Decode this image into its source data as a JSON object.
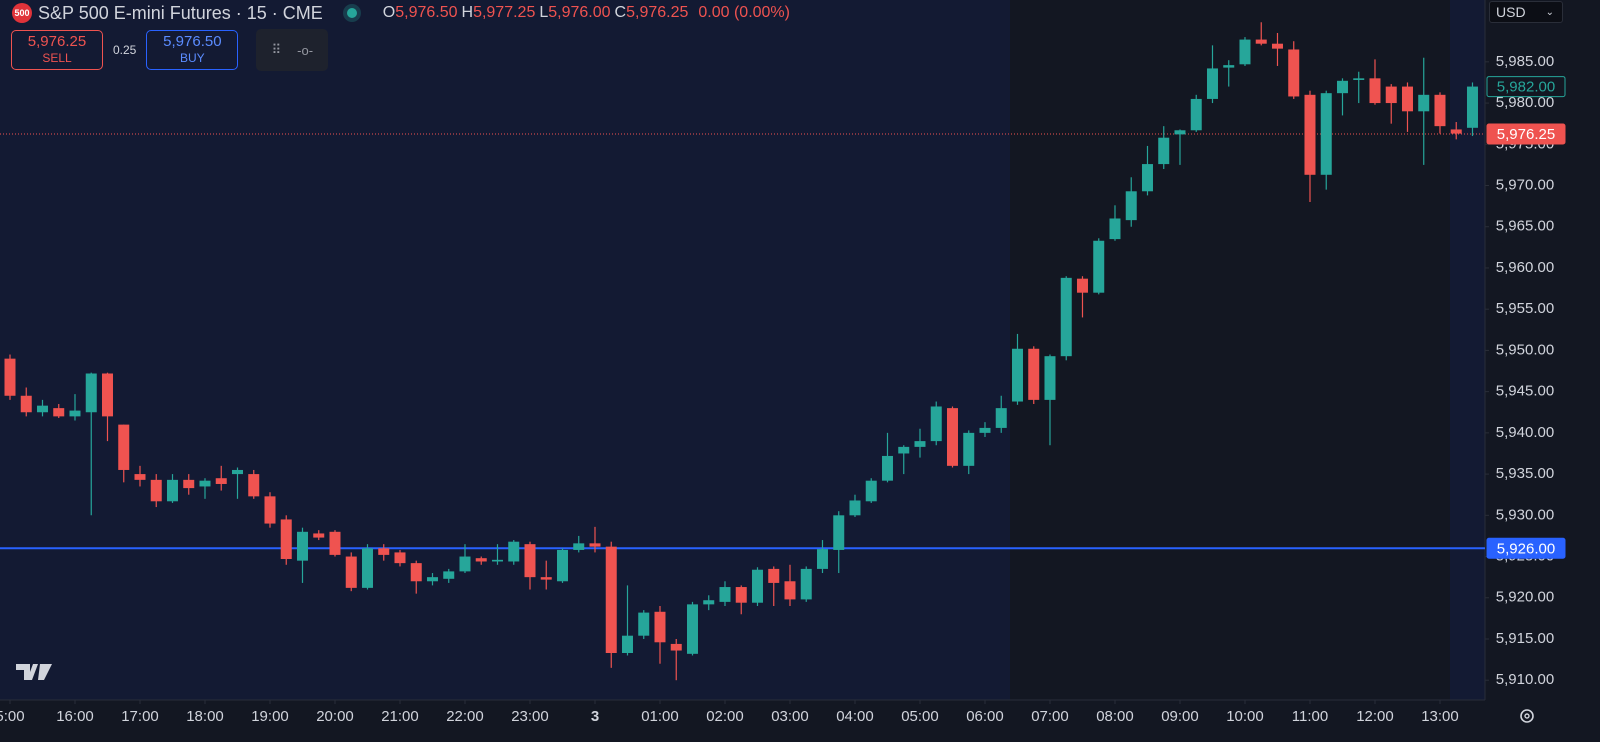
{
  "header": {
    "logo": "500",
    "title": "S&P 500 E-mini Futures · 15 · CME",
    "ohlc": [
      {
        "key": "O",
        "value": "5,976.50"
      },
      {
        "key": "H",
        "value": "5,977.25"
      },
      {
        "key": "L",
        "value": "5,976.00"
      },
      {
        "key": "C",
        "value": "5,976.25"
      }
    ],
    "change": "0.00 (0.00%)"
  },
  "trade": {
    "sell_price": "5,976.25",
    "sell": "SELL",
    "spread": "0.25",
    "buy_price": "5,976.50",
    "buy": "BUY"
  },
  "currency": "USD",
  "chart_data": {
    "type": "candlestick",
    "up_color": "#26a69a",
    "down_color": "#ef5350",
    "open": [
      5949,
      5944.5,
      5942.5,
      5943,
      5942,
      5942.5,
      5947.2,
      5941,
      5935,
      5934.3,
      5931.7,
      5934.3,
      5933.5,
      5934.5,
      5935,
      5935,
      5932.3,
      5929.5,
      5924.5,
      5927.8,
      5928,
      5925,
      5921.2,
      5926,
      5925.5,
      5924.2,
      5922,
      5922.3,
      5923.2,
      5924.8,
      5924.4,
      5924.4,
      5926.5,
      5922.5,
      5922,
      5925.8,
      5926.6,
      5926.2,
      5913.3,
      5915.4,
      5918.3,
      5914.4,
      5913.2,
      5919.2,
      5919.5,
      5921.3,
      5919.4,
      5923.5,
      5922,
      5919.8,
      5923.5,
      5925.8,
      5930,
      5931.7,
      5934.2,
      5937.5,
      5938.3,
      5939,
      5943,
      5936,
      5940,
      5940.6,
      5943.8,
      5950.2,
      5944,
      5949.3,
      5958.7,
      5957,
      5963.5,
      5965.8,
      5969.3,
      5972.6,
      5976.2,
      5976.7,
      5980.5,
      5984.3,
      5984.7,
      5987.7,
      5987.2,
      5986.5,
      5981,
      5971.3,
      5981.2,
      5982.8,
      5983,
      5982,
      5982,
      5979,
      5981,
      5976.8,
      5977
    ],
    "high": [
      5949.5,
      5945.5,
      5944,
      5943.5,
      5944.7,
      5947.3,
      5947.3,
      5941,
      5936,
      5935,
      5935,
      5935,
      5934.5,
      5936,
      5935.8,
      5935.5,
      5932.8,
      5930,
      5928.5,
      5928.2,
      5928.2,
      5925.5,
      5926.5,
      5926.5,
      5925.8,
      5924.5,
      5923,
      5923.5,
      5926.5,
      5925,
      5926.5,
      5927,
      5926.8,
      5924.5,
      5926,
      5927.5,
      5928.6,
      5926.8,
      5921.5,
      5918.5,
      5919,
      5915,
      5919.5,
      5920.3,
      5922,
      5921.5,
      5923.7,
      5923.8,
      5924,
      5923.8,
      5927,
      5930.5,
      5932.5,
      5934.5,
      5940,
      5938.5,
      5940.5,
      5943.8,
      5943.2,
      5940.3,
      5941.3,
      5944.5,
      5952,
      5950.5,
      5949.5,
      5959,
      5959,
      5963.6,
      5967.6,
      5971,
      5974.8,
      5977.2,
      5976.8,
      5981,
      5987,
      5985.2,
      5988,
      5989.8,
      5988.5,
      5987.5,
      5981.5,
      5981.5,
      5983,
      5983.8,
      5985.3,
      5982.3,
      5982.5,
      5985.5,
      5981.3,
      5977.7,
      5982.5
    ],
    "low": [
      5944,
      5942,
      5942,
      5941.8,
      5941.5,
      5930,
      5939,
      5934,
      5933.5,
      5931,
      5931.5,
      5932.5,
      5932,
      5933,
      5932,
      5932,
      5928.5,
      5924,
      5921.8,
      5927,
      5925,
      5920.8,
      5921,
      5924.5,
      5923.8,
      5920.5,
      5921.5,
      5921.8,
      5923,
      5924,
      5924,
      5924,
      5921,
      5921,
      5921.8,
      5925.5,
      5925.5,
      5911.5,
      5913,
      5915,
      5912,
      5910,
      5913,
      5918.5,
      5919,
      5918,
      5919,
      5919,
      5919,
      5919.5,
      5923,
      5923,
      5929.8,
      5931.5,
      5934,
      5935,
      5937,
      5938.5,
      5935.8,
      5935,
      5939.5,
      5940,
      5943.4,
      5943.5,
      5938.5,
      5948.8,
      5954,
      5956.8,
      5963.3,
      5965,
      5968.8,
      5972,
      5972.5,
      5976.5,
      5980,
      5982,
      5984.5,
      5987,
      5984.5,
      5980.5,
      5968,
      5969.5,
      5978.5,
      5980,
      5979.8,
      5977.5,
      5976.5,
      5972.5,
      5976.3,
      5975.6,
      5976
    ],
    "close": [
      5944.5,
      5942.5,
      5943.3,
      5942,
      5942.7,
      5947.2,
      5942,
      5935.5,
      5934.3,
      5931.7,
      5934.3,
      5933.3,
      5934.2,
      5933.8,
      5935.5,
      5932.3,
      5929,
      5924.7,
      5928,
      5927.3,
      5925.2,
      5921.2,
      5926,
      5925.2,
      5924.2,
      5922,
      5922.5,
      5923.2,
      5925,
      5924.4,
      5924.6,
      5926.8,
      5922.5,
      5922.2,
      5925.8,
      5926.6,
      5926.2,
      5913.3,
      5915.4,
      5918.2,
      5914.6,
      5913.6,
      5919.2,
      5919.7,
      5921.3,
      5919.4,
      5923.4,
      5921.8,
      5919.8,
      5923.5,
      5925.9,
      5930,
      5931.8,
      5934.2,
      5937.2,
      5938.3,
      5939,
      5943.2,
      5936,
      5940,
      5940.6,
      5943,
      5950.2,
      5944,
      5949.3,
      5958.8,
      5957,
      5963.3,
      5966,
      5969.3,
      5972.6,
      5975.8,
      5976.7,
      5980.5,
      5984.2,
      5984.6,
      5987.7,
      5987.2,
      5986.6,
      5980.8,
      5971.3,
      5981.2,
      5982.7,
      5983,
      5980,
      5980,
      5979,
      5981,
      5977.2,
      5976.3,
      5982
    ],
    "xlim": [
      -0.615,
      90.77
    ],
    "xticks": [
      {
        "value": 0,
        "label": "5:00"
      },
      {
        "value": 4,
        "label": "16:00"
      },
      {
        "value": 8,
        "label": "17:00"
      },
      {
        "value": 12,
        "label": "18:00"
      },
      {
        "value": 16,
        "label": "19:00"
      },
      {
        "value": 20,
        "label": "20:00"
      },
      {
        "value": 24,
        "label": "21:00"
      },
      {
        "value": 28,
        "label": "22:00"
      },
      {
        "value": 32,
        "label": "23:00"
      },
      {
        "value": 36,
        "label": "3"
      },
      {
        "value": 40,
        "label": "01:00"
      },
      {
        "value": 44,
        "label": "02:00"
      },
      {
        "value": 48,
        "label": "03:00"
      },
      {
        "value": 52,
        "label": "04:00"
      },
      {
        "value": 56,
        "label": "05:00"
      },
      {
        "value": 60,
        "label": "06:00"
      },
      {
        "value": 64,
        "label": "07:00"
      },
      {
        "value": 68,
        "label": "08:00"
      },
      {
        "value": 72,
        "label": "09:00"
      },
      {
        "value": 76,
        "label": "10:00"
      },
      {
        "value": 80,
        "label": "11:00"
      },
      {
        "value": 84,
        "label": "12:00"
      },
      {
        "value": 88,
        "label": "13:00"
      }
    ],
    "ylim": [
      5907.6,
      5992.5
    ],
    "yticks": [
      {
        "value": 5910,
        "label": "5,910.00"
      },
      {
        "value": 5915,
        "label": "5,915.00"
      },
      {
        "value": 5920,
        "label": "5,920.00"
      },
      {
        "value": 5925,
        "label": "5,925.00"
      },
      {
        "value": 5930,
        "label": "5,930.00"
      },
      {
        "value": 5935,
        "label": "5,935.00"
      },
      {
        "value": 5940,
        "label": "5,940.00"
      },
      {
        "value": 5945,
        "label": "5,945.00"
      },
      {
        "value": 5950,
        "label": "5,950.00"
      },
      {
        "value": 5955,
        "label": "5,955.00"
      },
      {
        "value": 5960,
        "label": "5,960.00"
      },
      {
        "value": 5965,
        "label": "5,965.00"
      },
      {
        "value": 5970,
        "label": "5,970.00"
      },
      {
        "value": 5975,
        "label": "5,975.00"
      },
      {
        "value": 5980,
        "label": "5,980.00"
      },
      {
        "value": 5985,
        "label": "5,985.00"
      }
    ],
    "price_lines": [
      {
        "value": 5982,
        "label": "5,982.00",
        "color": "#26a69a",
        "line": "none",
        "badge": "outline"
      },
      {
        "value": 5976.25,
        "label": "5,976.25",
        "color": "#ef5350",
        "line": "dotted",
        "badge": "filled"
      },
      {
        "value": 5926,
        "label": "5,926.00",
        "color": "#2962ff",
        "line": "solid",
        "badge": "filled"
      }
    ]
  }
}
